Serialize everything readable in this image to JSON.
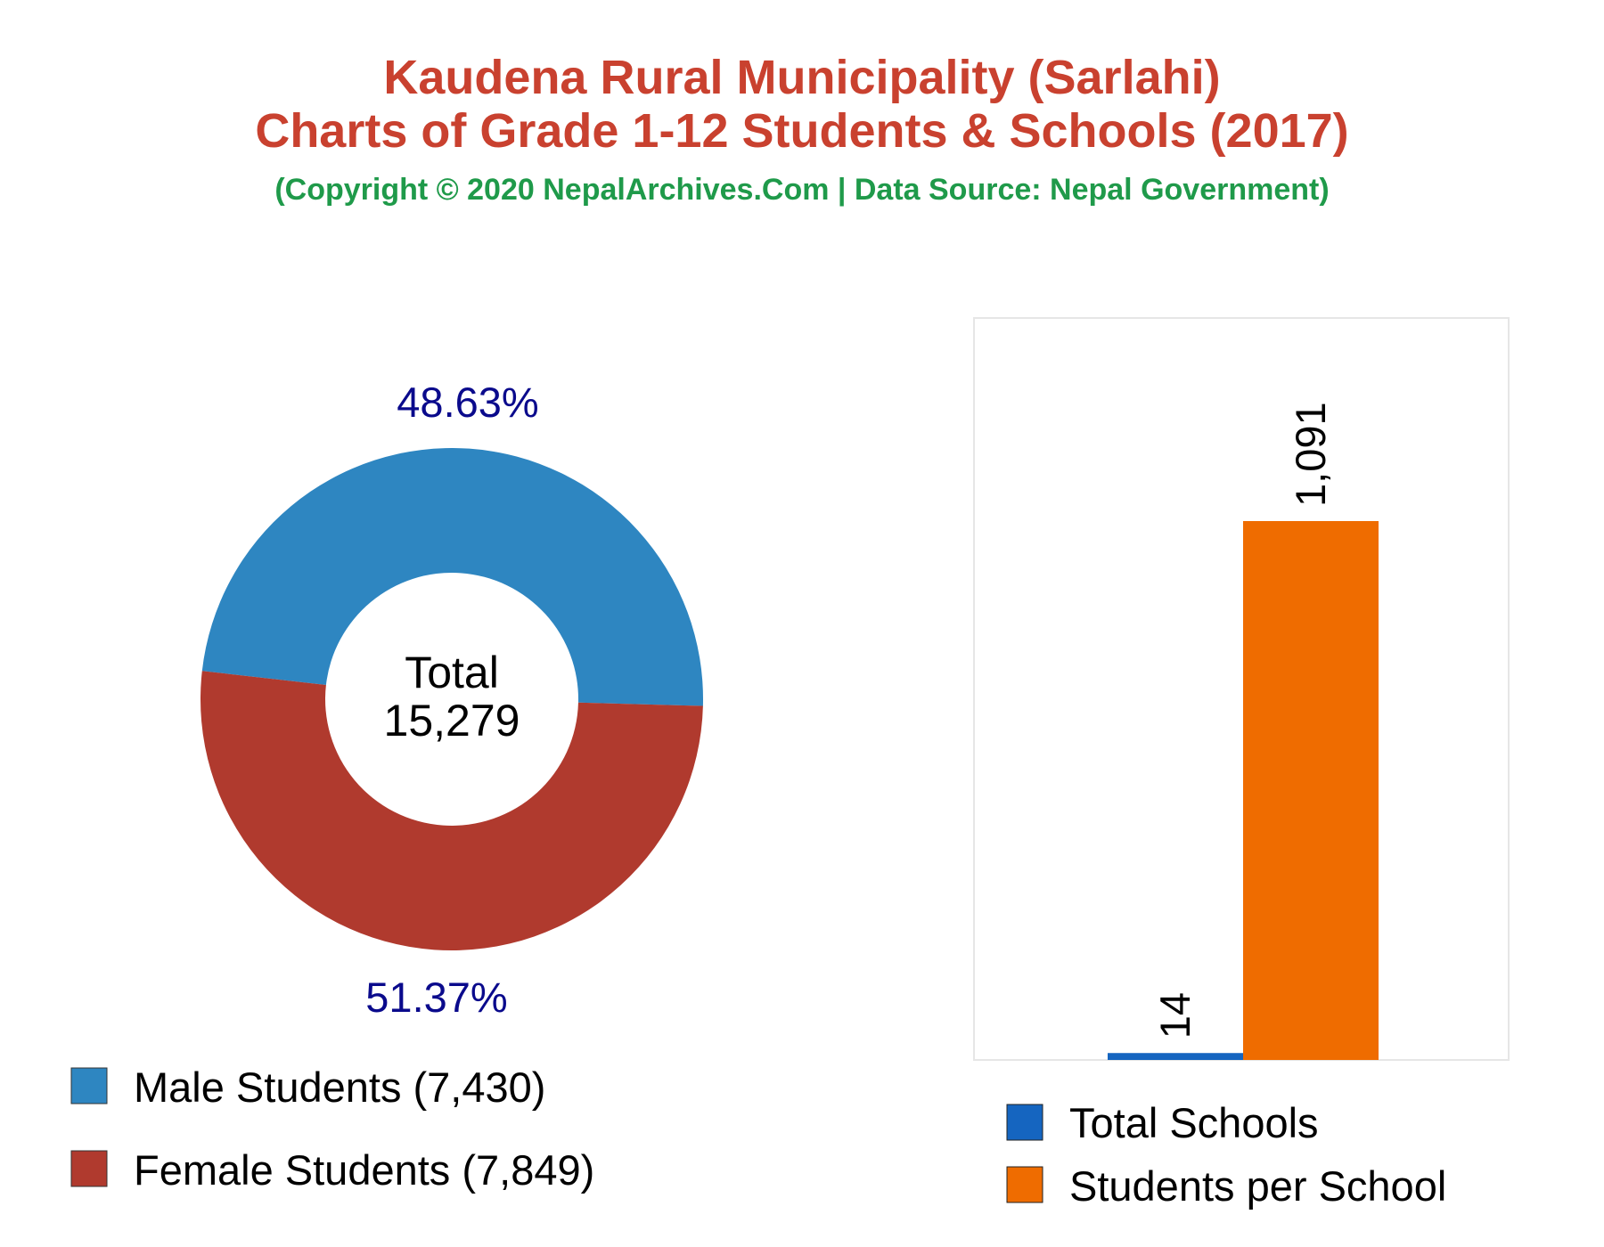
{
  "header": {
    "title_line1": "Kaudena Rural Municipality (Sarlahi)",
    "title_line2": "Charts of Grade 1-12 Students & Schools (2017)",
    "subtitle": "(Copyright © 2020 NepalArchives.Com | Data Source: Nepal Government)"
  },
  "colors": {
    "title": "#c9412f",
    "subtitle": "#1f9a4a",
    "male": "#2e86c1",
    "female": "#b03a2e",
    "percent_text": "#0a0a8c",
    "total_schools": "#1565c0",
    "students_per_school": "#ef6c00"
  },
  "chart_data": [
    {
      "type": "pie",
      "style": "donut",
      "center_label": "Total",
      "center_value": "15,279",
      "slices": [
        {
          "name": "Male Students",
          "value": 7430,
          "percent": 48.63,
          "percent_label": "48.63%",
          "legend_label": "Male Students (7,430)",
          "color": "#2e86c1"
        },
        {
          "name": "Female Students",
          "value": 7849,
          "percent": 51.37,
          "percent_label": "51.37%",
          "legend_label": "Female Students (7,849)",
          "color": "#b03a2e"
        }
      ],
      "legend_placement": "bottom-left"
    },
    {
      "type": "bar",
      "series": [
        {
          "name": "Total Schools",
          "value": 14,
          "value_label": "14",
          "color": "#1565c0"
        },
        {
          "name": "Students per School",
          "value": 1091,
          "value_label": "1,091",
          "color": "#ef6c00"
        }
      ],
      "grid": false,
      "legend_placement": "bottom"
    }
  ]
}
